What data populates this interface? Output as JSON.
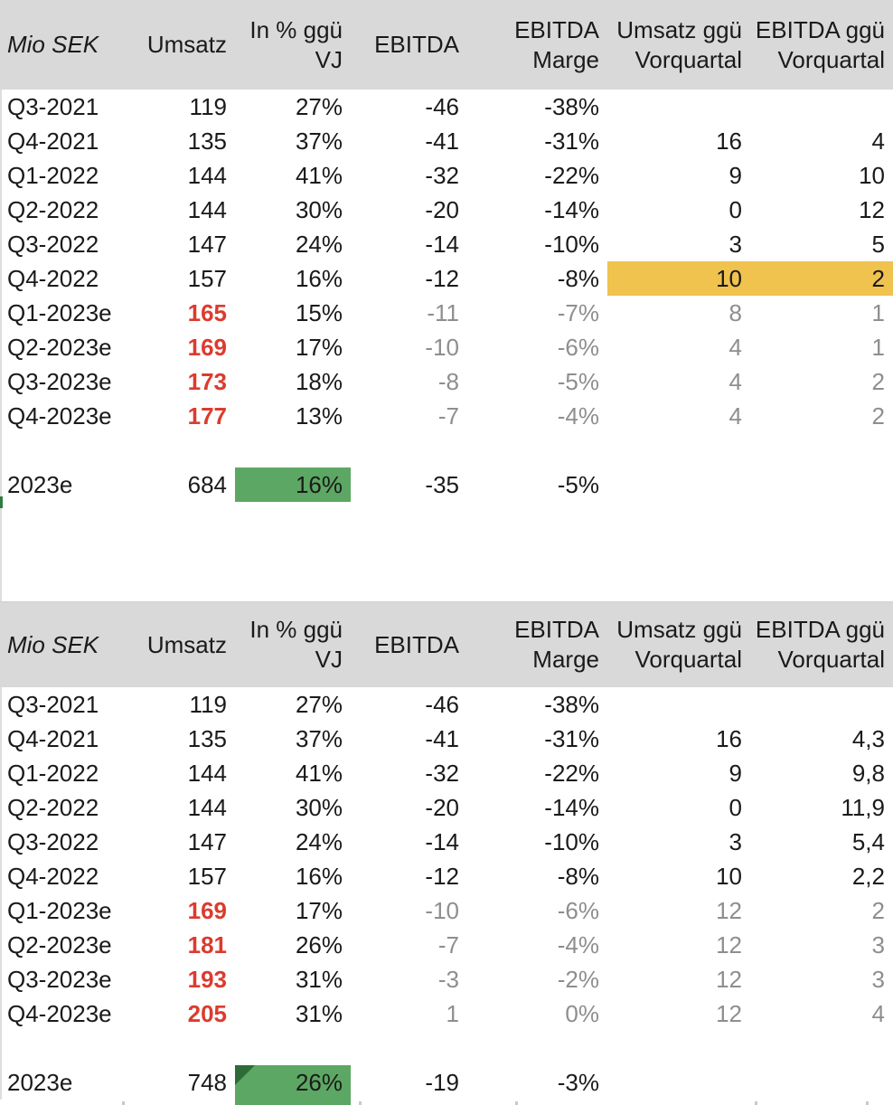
{
  "colors": {
    "header_bg": "#d9d9d9",
    "highlight_yellow": "#f0c24e",
    "highlight_green": "#5ca763",
    "corner_triangle_green": "#2e6b36",
    "forecast_text_red": "#dc3b2e",
    "forecast_text_gray": "#8e8e8e",
    "text_black": "#1a1a1a"
  },
  "unit_label": "Mio SEK",
  "tables": [
    {
      "columns": [
        {
          "key": "mio-sek",
          "lines": [
            "Mio SEK"
          ]
        },
        {
          "key": "umsatz",
          "lines": [
            "Umsatz"
          ]
        },
        {
          "key": "in-pct-ggu-vj",
          "lines": [
            "In % ggü",
            "VJ"
          ]
        },
        {
          "key": "ebitda",
          "lines": [
            "EBITDA"
          ]
        },
        {
          "key": "ebitda-marge",
          "lines": [
            "EBITDA",
            "Marge"
          ]
        },
        {
          "key": "umsatz-ggu-vorquartal",
          "lines": [
            "Umsatz ggü",
            "Vorquartal"
          ]
        },
        {
          "key": "ebitda-ggu-vorquartal",
          "lines": [
            "EBITDA ggü",
            "Vorquartal"
          ]
        }
      ],
      "rows": [
        {
          "label": "Q3-2021",
          "cells": [
            {
              "t": "119"
            },
            {
              "t": "27%"
            },
            {
              "t": "-46"
            },
            {
              "t": "-38%"
            },
            {
              "t": ""
            },
            {
              "t": ""
            }
          ]
        },
        {
          "label": "Q4-2021",
          "cells": [
            {
              "t": "135"
            },
            {
              "t": "37%"
            },
            {
              "t": "-41"
            },
            {
              "t": "-31%"
            },
            {
              "t": "16"
            },
            {
              "t": "4"
            }
          ]
        },
        {
          "label": "Q1-2022",
          "cells": [
            {
              "t": "144"
            },
            {
              "t": "41%"
            },
            {
              "t": "-32"
            },
            {
              "t": "-22%"
            },
            {
              "t": "9"
            },
            {
              "t": "10"
            }
          ]
        },
        {
          "label": "Q2-2022",
          "cells": [
            {
              "t": "144"
            },
            {
              "t": "30%"
            },
            {
              "t": "-20"
            },
            {
              "t": "-14%"
            },
            {
              "t": "0"
            },
            {
              "t": "12"
            }
          ]
        },
        {
          "label": "Q3-2022",
          "cells": [
            {
              "t": "147"
            },
            {
              "t": "24%"
            },
            {
              "t": "-14"
            },
            {
              "t": "-10%"
            },
            {
              "t": "3"
            },
            {
              "t": "5"
            }
          ]
        },
        {
          "label": "Q4-2022",
          "cells": [
            {
              "t": "157"
            },
            {
              "t": "16%"
            },
            {
              "t": "-12"
            },
            {
              "t": "-8%"
            },
            {
              "t": "10",
              "bg": "yellow"
            },
            {
              "t": "2",
              "bg": "yellow"
            }
          ]
        },
        {
          "label": "Q1-2023e",
          "cells": [
            {
              "t": "165",
              "s": "red"
            },
            {
              "t": "15%"
            },
            {
              "t": "-11",
              "s": "gray"
            },
            {
              "t": "-7%",
              "s": "gray"
            },
            {
              "t": "8",
              "s": "gray"
            },
            {
              "t": "1",
              "s": "gray"
            }
          ]
        },
        {
          "label": "Q2-2023e",
          "cells": [
            {
              "t": "169",
              "s": "red"
            },
            {
              "t": "17%"
            },
            {
              "t": "-10",
              "s": "gray"
            },
            {
              "t": "-6%",
              "s": "gray"
            },
            {
              "t": "4",
              "s": "gray"
            },
            {
              "t": "1",
              "s": "gray"
            }
          ]
        },
        {
          "label": "Q3-2023e",
          "cells": [
            {
              "t": "173",
              "s": "red"
            },
            {
              "t": "18%"
            },
            {
              "t": "-8",
              "s": "gray"
            },
            {
              "t": "-5%",
              "s": "gray"
            },
            {
              "t": "4",
              "s": "gray"
            },
            {
              "t": "2",
              "s": "gray"
            }
          ]
        },
        {
          "label": "Q4-2023e",
          "cells": [
            {
              "t": "177",
              "s": "red"
            },
            {
              "t": "13%"
            },
            {
              "t": "-7",
              "s": "gray"
            },
            {
              "t": "-4%",
              "s": "gray"
            },
            {
              "t": "4",
              "s": "gray"
            },
            {
              "t": "2",
              "s": "gray"
            }
          ]
        },
        {
          "blank": true
        },
        {
          "label": "2023e",
          "cells": [
            {
              "t": "684"
            },
            {
              "t": "16%",
              "bg": "green"
            },
            {
              "t": "-35"
            },
            {
              "t": "-5%"
            },
            {
              "t": ""
            },
            {
              "t": ""
            }
          ]
        }
      ]
    },
    {
      "columns": [
        {
          "key": "mio-sek",
          "lines": [
            "Mio SEK"
          ]
        },
        {
          "key": "umsatz",
          "lines": [
            "Umsatz"
          ]
        },
        {
          "key": "in-pct-ggu-vj",
          "lines": [
            "In % ggü",
            "VJ"
          ]
        },
        {
          "key": "ebitda",
          "lines": [
            "EBITDA"
          ]
        },
        {
          "key": "ebitda-marge",
          "lines": [
            "EBITDA",
            "Marge"
          ]
        },
        {
          "key": "umsatz-ggu-vorquartal",
          "lines": [
            "Umsatz ggü",
            "Vorquartal"
          ]
        },
        {
          "key": "ebitda-ggu-vorquartal",
          "lines": [
            "EBITDA ggü",
            "Vorquartal"
          ]
        }
      ],
      "rows": [
        {
          "label": "Q3-2021",
          "cells": [
            {
              "t": "119"
            },
            {
              "t": "27%"
            },
            {
              "t": "-46"
            },
            {
              "t": "-38%"
            },
            {
              "t": ""
            },
            {
              "t": ""
            }
          ]
        },
        {
          "label": "Q4-2021",
          "cells": [
            {
              "t": "135"
            },
            {
              "t": "37%"
            },
            {
              "t": "-41"
            },
            {
              "t": "-31%"
            },
            {
              "t": "16"
            },
            {
              "t": "4,3"
            }
          ]
        },
        {
          "label": "Q1-2022",
          "cells": [
            {
              "t": "144"
            },
            {
              "t": "41%"
            },
            {
              "t": "-32"
            },
            {
              "t": "-22%"
            },
            {
              "t": "9"
            },
            {
              "t": "9,8"
            }
          ]
        },
        {
          "label": "Q2-2022",
          "cells": [
            {
              "t": "144"
            },
            {
              "t": "30%"
            },
            {
              "t": "-20"
            },
            {
              "t": "-14%"
            },
            {
              "t": "0"
            },
            {
              "t": "11,9"
            }
          ]
        },
        {
          "label": "Q3-2022",
          "cells": [
            {
              "t": "147"
            },
            {
              "t": "24%"
            },
            {
              "t": "-14"
            },
            {
              "t": "-10%"
            },
            {
              "t": "3"
            },
            {
              "t": "5,4"
            }
          ]
        },
        {
          "label": "Q4-2022",
          "cells": [
            {
              "t": "157"
            },
            {
              "t": "16%"
            },
            {
              "t": "-12"
            },
            {
              "t": "-8%"
            },
            {
              "t": "10"
            },
            {
              "t": "2,2"
            }
          ]
        },
        {
          "label": "Q1-2023e",
          "cells": [
            {
              "t": "169",
              "s": "red"
            },
            {
              "t": "17%"
            },
            {
              "t": "-10",
              "s": "gray"
            },
            {
              "t": "-6%",
              "s": "gray"
            },
            {
              "t": "12",
              "s": "gray"
            },
            {
              "t": "2",
              "s": "gray"
            }
          ]
        },
        {
          "label": "Q2-2023e",
          "cells": [
            {
              "t": "181",
              "s": "red"
            },
            {
              "t": "26%"
            },
            {
              "t": "-7",
              "s": "gray"
            },
            {
              "t": "-4%",
              "s": "gray"
            },
            {
              "t": "12",
              "s": "gray"
            },
            {
              "t": "3",
              "s": "gray"
            }
          ]
        },
        {
          "label": "Q3-2023e",
          "cells": [
            {
              "t": "193",
              "s": "red"
            },
            {
              "t": "31%"
            },
            {
              "t": "-3",
              "s": "gray"
            },
            {
              "t": "-2%",
              "s": "gray"
            },
            {
              "t": "12",
              "s": "gray"
            },
            {
              "t": "3",
              "s": "gray"
            }
          ]
        },
        {
          "label": "Q4-2023e",
          "cells": [
            {
              "t": "205",
              "s": "red"
            },
            {
              "t": "31%"
            },
            {
              "t": "1",
              "s": "gray"
            },
            {
              "t": "0%",
              "s": "gray"
            },
            {
              "t": "12",
              "s": "gray"
            },
            {
              "t": "4",
              "s": "gray"
            }
          ]
        },
        {
          "blank": true
        },
        {
          "label": "2023e",
          "cells": [
            {
              "t": "748"
            },
            {
              "t": "26%",
              "bg": "green",
              "corner": true
            },
            {
              "t": "-19"
            },
            {
              "t": "-3%"
            },
            {
              "t": ""
            },
            {
              "t": ""
            }
          ]
        }
      ]
    }
  ]
}
